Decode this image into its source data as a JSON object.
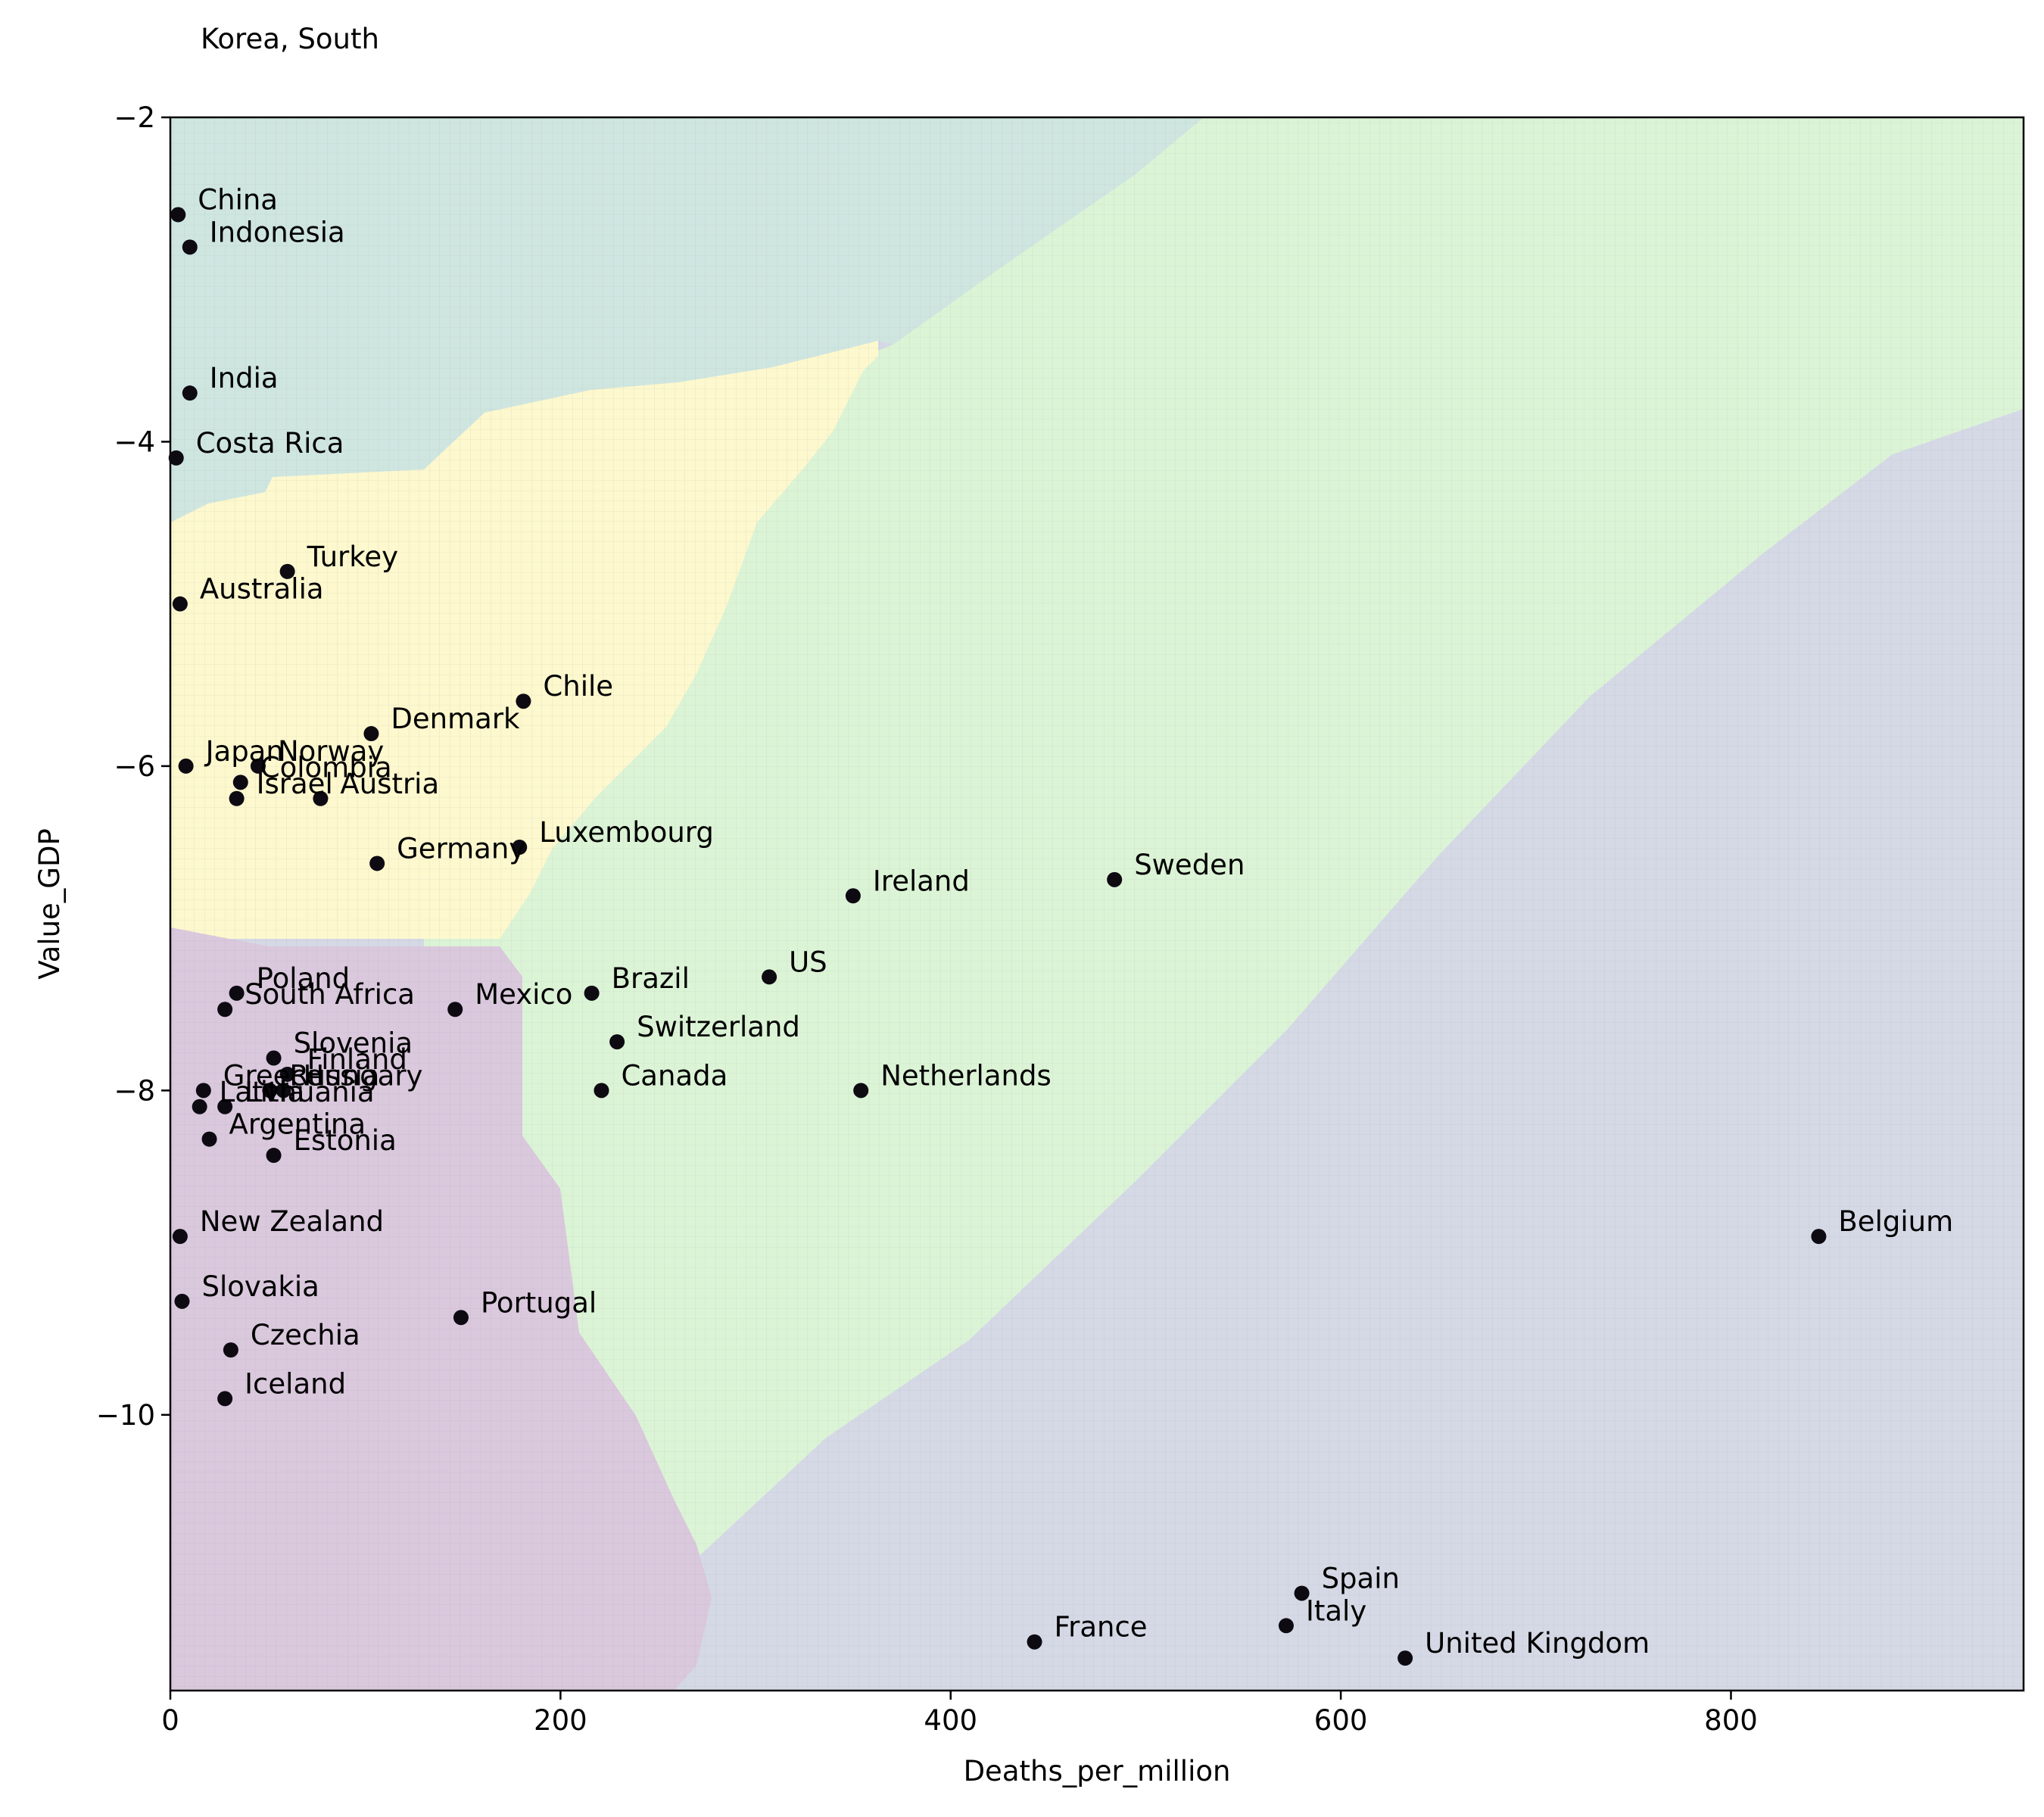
{
  "chart_data": {
    "type": "scatter",
    "title": "Korea, South",
    "xlabel": "Deaths_per_million",
    "ylabel": "Value_GDP",
    "xlim": [
      0,
      950
    ],
    "ylim": [
      -11.7,
      -2
    ],
    "x_ticks": [
      0,
      200,
      400,
      600,
      800
    ],
    "y_ticks": [
      -2,
      -4,
      -6,
      -8,
      -10
    ],
    "x_tick_labels": [
      "0",
      "200",
      "400",
      "600",
      "800"
    ],
    "y_tick_labels": [
      "−2",
      "−4",
      "−6",
      "−8",
      "−10"
    ],
    "grid": false,
    "background": "decision regions (4 classes)",
    "region_colors": {
      "teal": "#cfe6e0",
      "yellow": "#fdf8cd",
      "green": "#dcf4d6",
      "purple": "#dac8dd",
      "slate": "#d5d9e5"
    },
    "marker_color": "#0d0a12",
    "points": [
      {
        "label": "China",
        "x": 4,
        "y": -2.6
      },
      {
        "label": "Indonesia",
        "x": 10,
        "y": -2.8
      },
      {
        "label": "India",
        "x": 10,
        "y": -3.7
      },
      {
        "label": "Costa Rica",
        "x": 3,
        "y": -4.1
      },
      {
        "label": "Turkey",
        "x": 60,
        "y": -4.8
      },
      {
        "label": "Australia",
        "x": 5,
        "y": -5.0
      },
      {
        "label": "Chile",
        "x": 181,
        "y": -5.6
      },
      {
        "label": "Denmark",
        "x": 103,
        "y": -5.8
      },
      {
        "label": "Japan",
        "x": 8,
        "y": -6.0
      },
      {
        "label": "Norway",
        "x": 45,
        "y": -6.0
      },
      {
        "label": "Colombia",
        "x": 36,
        "y": -6.1
      },
      {
        "label": "Israel",
        "x": 34,
        "y": -6.2
      },
      {
        "label": "Austria",
        "x": 77,
        "y": -6.2
      },
      {
        "label": "Germany",
        "x": 106,
        "y": -6.6
      },
      {
        "label": "Luxembourg",
        "x": 179,
        "y": -6.5
      },
      {
        "label": "Ireland",
        "x": 350,
        "y": -6.8
      },
      {
        "label": "Sweden",
        "x": 484,
        "y": -6.7
      },
      {
        "label": "US",
        "x": 307,
        "y": -7.3
      },
      {
        "label": "Brazil",
        "x": 216,
        "y": -7.4
      },
      {
        "label": "Poland",
        "x": 34,
        "y": -7.4
      },
      {
        "label": "South Africa",
        "x": 28,
        "y": -7.5
      },
      {
        "label": "Mexico",
        "x": 146,
        "y": -7.5
      },
      {
        "label": "Switzerland",
        "x": 229,
        "y": -7.7
      },
      {
        "label": "Slovenia",
        "x": 53,
        "y": -7.8
      },
      {
        "label": "Finland",
        "x": 60,
        "y": -7.9
      },
      {
        "label": "Hungary",
        "x": 58,
        "y": -8.0
      },
      {
        "label": "Russia",
        "x": 51,
        "y": -8.0
      },
      {
        "label": "Greece",
        "x": 17,
        "y": -8.0
      },
      {
        "label": "Canada",
        "x": 221,
        "y": -8.0
      },
      {
        "label": "Netherlands",
        "x": 354,
        "y": -8.0
      },
      {
        "label": "Latvia",
        "x": 15,
        "y": -8.1
      },
      {
        "label": "Lithuania",
        "x": 28,
        "y": -8.1
      },
      {
        "label": "Argentina",
        "x": 20,
        "y": -8.3
      },
      {
        "label": "Estonia",
        "x": 53,
        "y": -8.4
      },
      {
        "label": "New Zealand",
        "x": 5,
        "y": -8.9
      },
      {
        "label": "Belgium",
        "x": 845,
        "y": -8.9
      },
      {
        "label": "Slovakia",
        "x": 6,
        "y": -9.3
      },
      {
        "label": "Portugal",
        "x": 149,
        "y": -9.4
      },
      {
        "label": "Czechia",
        "x": 31,
        "y": -9.6
      },
      {
        "label": "Iceland",
        "x": 28,
        "y": -9.9
      },
      {
        "label": "Spain",
        "x": 580,
        "y": -11.1
      },
      {
        "label": "Italy",
        "x": 572,
        "y": -11.3
      },
      {
        "label": "France",
        "x": 443,
        "y": -11.4
      },
      {
        "label": "United Kingdom",
        "x": 633,
        "y": -11.5
      }
    ]
  }
}
